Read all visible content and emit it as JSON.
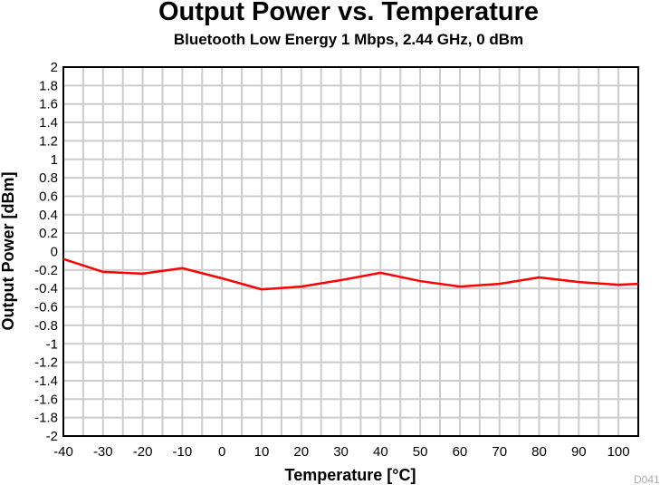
{
  "chart_data": {
    "type": "line",
    "title": "Output Power vs. Temperature",
    "subtitle": "Bluetooth Low Energy 1 Mbps, 2.44 GHz, 0 dBm",
    "xlabel": "Temperature [°C]",
    "ylabel": "Output Power [dBm]",
    "xlim": [
      -40,
      105
    ],
    "ylim": [
      -2,
      2
    ],
    "xticks": [
      -40,
      -30,
      -20,
      -10,
      0,
      10,
      20,
      30,
      40,
      50,
      60,
      70,
      80,
      90,
      100
    ],
    "yticks": [
      2,
      1.8,
      1.6,
      1.4,
      1.2,
      1,
      0.8,
      0.6,
      0.4,
      0.2,
      0,
      -0.2,
      -0.4,
      -0.6,
      -0.8,
      -1,
      -1.2,
      -1.4,
      -1.6,
      -1.8,
      -2
    ],
    "grid": true,
    "color": "#ff0000",
    "x": [
      -40,
      -30,
      -20,
      -10,
      0,
      10,
      20,
      30,
      40,
      50,
      60,
      70,
      80,
      90,
      100,
      105
    ],
    "y": [
      -0.08,
      -0.22,
      -0.24,
      -0.18,
      -0.29,
      -0.41,
      -0.38,
      -0.31,
      -0.23,
      -0.32,
      -0.38,
      -0.35,
      -0.28,
      -0.33,
      -0.36,
      -0.35
    ],
    "watermark": "D041"
  }
}
